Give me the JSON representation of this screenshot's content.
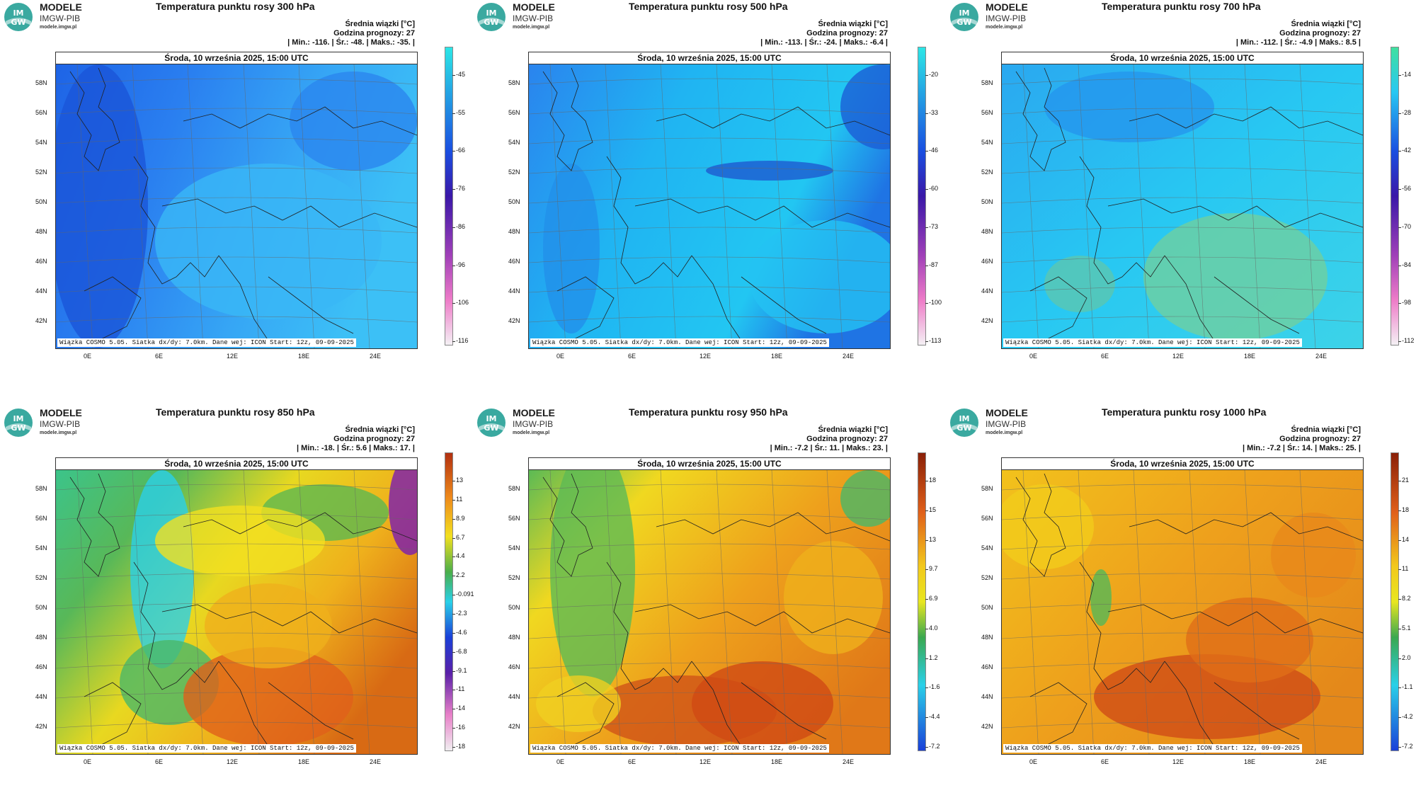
{
  "logo": {
    "line1": "MODELE",
    "line2": "IMGW-PIB",
    "line3": "modele.imgw.pl",
    "badge": "IM GW"
  },
  "colors": {
    "blue": "#1f6fe0",
    "cyan": "#18c8f0",
    "green": "#52b060",
    "yellow": "#f1dc22",
    "orange": "#ee9a1c",
    "red": "#cc3d12",
    "purple": "#8a2bb5"
  },
  "panels": [
    {
      "title": "Temperatura punktu rosy 300 hPa",
      "info_line1": "Średnia wiązki [°C]",
      "info_line2": "Godzina prognozy: 27",
      "info_line3": "| Min.:  -116. | Śr.:  -48. | Maks.:  -35. |",
      "date": "Środa, 10 września 2025, 15:00 UTC",
      "footer": "Wiązka COSMO 5.05. Siatka dx/dy: 7.0km. Dane wej: ICON Start: 12z, 09-09-2025",
      "latitudes": [
        "58N",
        "56N",
        "54N",
        "52N",
        "50N",
        "48N",
        "46N",
        "44N",
        "42N"
      ],
      "longitudes": [
        "0E",
        "6E",
        "12E",
        "18E",
        "24E"
      ],
      "colorbar": [
        "-45",
        "-55",
        "-66",
        "-76",
        "-86",
        "-96",
        "-106",
        "-116"
      ],
      "field": "upper"
    },
    {
      "title": "Temperatura punktu rosy 500 hPa",
      "info_line1": "Średnia wiązki [°C]",
      "info_line2": "Godzina prognozy: 27",
      "info_line3": "| Min.:  -113. | Śr.:  -24. | Maks.:  -6.4 |",
      "date": "Środa, 10 września 2025, 15:00 UTC",
      "footer": "Wiązka COSMO 5.05. Siatka dx/dy: 7.0km. Dane wej: ICON Start: 12z, 09-09-2025",
      "latitudes": [
        "58N",
        "56N",
        "54N",
        "52N",
        "50N",
        "48N",
        "46N",
        "44N",
        "42N"
      ],
      "longitudes": [
        "0E",
        "6E",
        "12E",
        "18E",
        "24E"
      ],
      "colorbar": [
        "-20",
        "-33",
        "-46",
        "-60",
        "-73",
        "-87",
        "-100",
        "-113"
      ],
      "field": "mid"
    },
    {
      "title": "Temperatura punktu rosy 700 hPa",
      "info_line1": "Średnia wiązki [°C]",
      "info_line2": "Godzina prognozy: 27",
      "info_line3": "| Min.:  -112. | Śr.:  -4.9 | Maks.:  8.5 |",
      "date": "Środa, 10 września 2025, 15:00 UTC",
      "footer": "Wiązka COSMO 5.05. Siatka dx/dy: 7.0km. Dane wej: ICON Start: 12z, 09-09-2025",
      "latitudes": [
        "58N",
        "56N",
        "54N",
        "52N",
        "50N",
        "48N",
        "46N",
        "44N",
        "42N"
      ],
      "longitudes": [
        "0E",
        "6E",
        "12E",
        "18E",
        "24E"
      ],
      "colorbar": [
        "-14",
        "-28",
        "-42",
        "-56",
        "-70",
        "-84",
        "-98",
        "-112"
      ],
      "field": "p700"
    },
    {
      "title": "Temperatura punktu rosy 850 hPa",
      "info_line1": "Średnia wiązki [°C]",
      "info_line2": "Godzina prognozy: 27",
      "info_line3": "| Min.:  -18. | Śr.:  5.6 | Maks.:  17. |",
      "date": "Środa, 10 września 2025, 15:00 UTC",
      "footer": "Wiązka COSMO 5.05. Siatka dx/dy: 7.0km. Dane wej: ICON Start: 12z, 09-09-2025",
      "latitudes": [
        "58N",
        "56N",
        "54N",
        "52N",
        "50N",
        "48N",
        "46N",
        "44N",
        "42N"
      ],
      "longitudes": [
        "0E",
        "6E",
        "12E",
        "18E",
        "24E"
      ],
      "colorbar": [
        "13",
        "11",
        "8.9",
        "6.7",
        "4.4",
        "2.2",
        "-0.091",
        "-2.3",
        "-4.6",
        "-6.8",
        "-9.1",
        "-11",
        "-14",
        "-16",
        "-18"
      ],
      "field": "p850"
    },
    {
      "title": "Temperatura punktu rosy 950 hPa",
      "info_line1": "Średnia wiązki [°C]",
      "info_line2": "Godzina prognozy: 27",
      "info_line3": "| Min.:  -7.2 | Śr.:  11. | Maks.:  23. |",
      "date": "Środa, 10 września 2025, 15:00 UTC",
      "footer": "Wiązka COSMO 5.05. Siatka dx/dy: 7.0km. Dane wej: ICON Start: 12z, 09-09-2025",
      "latitudes": [
        "58N",
        "56N",
        "54N",
        "52N",
        "50N",
        "48N",
        "46N",
        "44N",
        "42N"
      ],
      "longitudes": [
        "0E",
        "6E",
        "12E",
        "18E",
        "24E"
      ],
      "colorbar": [
        "18",
        "15",
        "13",
        "9.7",
        "6.9",
        "4.0",
        "1.2",
        "-1.6",
        "-4.4",
        "-7.2"
      ],
      "field": "low"
    },
    {
      "title": "Temperatura punktu rosy 1000 hPa",
      "info_line1": "Średnia wiązki [°C]",
      "info_line2": "Godzina prognozy: 27",
      "info_line3": "| Min.:  -7.2 | Śr.:  14. | Maks.:  25. |",
      "date": "Środa, 10 września 2025, 15:00 UTC",
      "footer": "Wiązka COSMO 5.05. Siatka dx/dy: 7.0km. Dane wej: ICON Start: 12z, 09-09-2025",
      "latitudes": [
        "58N",
        "56N",
        "54N",
        "52N",
        "50N",
        "48N",
        "46N",
        "44N",
        "42N"
      ],
      "longitudes": [
        "0E",
        "6E",
        "12E",
        "18E",
        "24E"
      ],
      "colorbar": [
        "21",
        "18",
        "14",
        "11",
        "8.2",
        "5.1",
        "2.0",
        "-1.1",
        "-4.2",
        "-7.2"
      ],
      "field": "sfc"
    }
  ]
}
